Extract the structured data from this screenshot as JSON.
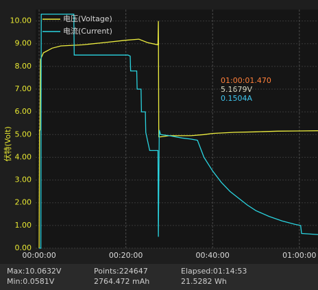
{
  "chart_data": {
    "type": "line",
    "y_label": "伏特(Volt)",
    "xlim": [
      -0.8,
      64.3
    ],
    "ylim": [
      0,
      10.5
    ],
    "xticks": [
      {
        "value": 0,
        "label": "00:00:00"
      },
      {
        "value": 20,
        "label": "00:20:00"
      },
      {
        "value": 40,
        "label": "00:40:00"
      },
      {
        "value": 60,
        "label": "01:00:00"
      }
    ],
    "yticks": [
      {
        "value": 0,
        "label": "0.00"
      },
      {
        "value": 1,
        "label": "1.00"
      },
      {
        "value": 2,
        "label": "2.00"
      },
      {
        "value": 3,
        "label": "3.00"
      },
      {
        "value": 4,
        "label": "4.00"
      },
      {
        "value": 5,
        "label": "5.00"
      },
      {
        "value": 6,
        "label": "6.00"
      },
      {
        "value": 7,
        "label": "7.00"
      },
      {
        "value": 8,
        "label": "8.00"
      },
      {
        "value": 9,
        "label": "9.00"
      },
      {
        "value": 10,
        "label": "10.00"
      }
    ],
    "grid": true,
    "series": [
      {
        "name": "电压(Voltage)",
        "color": "#f0f040",
        "x": [
          0,
          0.1,
          0.2,
          0.3,
          1,
          3,
          5,
          10,
          15,
          20,
          23,
          25,
          27.4,
          27.5,
          27.6,
          28,
          30,
          35,
          38,
          40,
          45,
          50,
          55,
          60,
          64.3
        ],
        "values": [
          0,
          5.2,
          5.2,
          8.3,
          8.6,
          8.8,
          8.9,
          8.95,
          9.05,
          9.15,
          9.2,
          9.05,
          8.95,
          10.0,
          4.9,
          4.9,
          4.95,
          4.95,
          5.0,
          5.05,
          5.1,
          5.12,
          5.15,
          5.16,
          5.17
        ]
      },
      {
        "name": "电流(Current)",
        "color": "#2ad4e0",
        "x": [
          0,
          0.4,
          0.5,
          8,
          8.1,
          20.5,
          21,
          21.1,
          22.5,
          22.6,
          23.5,
          23.6,
          24.5,
          24.6,
          25.5,
          27.4,
          27.5,
          27.7,
          28,
          30,
          33,
          35,
          36.5,
          38,
          40,
          42,
          44,
          46,
          48,
          50,
          53,
          56,
          59,
          60.3,
          60.5,
          64.3
        ],
        "values": [
          0,
          0,
          10.3,
          10.3,
          8.5,
          8.5,
          8.45,
          7.8,
          7.8,
          7.0,
          7.0,
          6.0,
          6.0,
          5.1,
          4.3,
          4.3,
          0.5,
          5.2,
          5.0,
          4.95,
          4.85,
          4.8,
          4.75,
          4.0,
          3.4,
          2.9,
          2.5,
          2.2,
          1.9,
          1.65,
          1.4,
          1.2,
          1.05,
          1.0,
          0.65,
          0.6
        ]
      }
    ],
    "annotation": {
      "time": "01:00:01.470",
      "voltage": "5.1679V",
      "current": "0.1504A"
    },
    "stats": {
      "max": "Max:10.0632V",
      "min": "Min:0.0581V",
      "points": "Points:224647",
      "capacity": "2764.472 mAh",
      "elapsed": "Elapsed:01:14:53",
      "energy": "21.5282 Wh"
    }
  }
}
